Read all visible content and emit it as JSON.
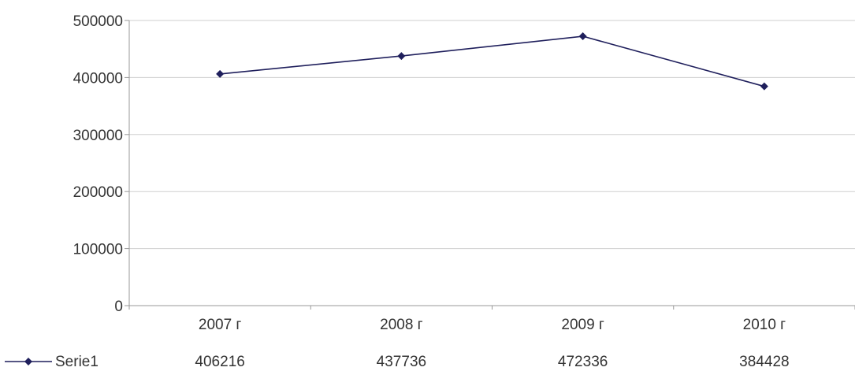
{
  "chart_data": {
    "type": "line",
    "categories": [
      "2007 г",
      "2008 г",
      "2009 г",
      "2010 г"
    ],
    "series": [
      {
        "name": "Serie1",
        "values": [
          406216,
          437736,
          472336,
          384428
        ],
        "color": "#1f1f5c"
      }
    ],
    "yticks": [
      0,
      100000,
      200000,
      300000,
      400000,
      500000
    ],
    "ylim": [
      0,
      500000
    ],
    "grid": true,
    "legend_position": "bottom-left",
    "data_table": true
  }
}
